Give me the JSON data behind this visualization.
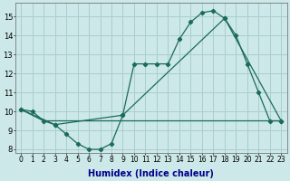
{
  "xlabel": "Humidex (Indice chaleur)",
  "bg_color": "#cce8e8",
  "grid_color": "#aacece",
  "line_color": "#1a6b5a",
  "xlim": [
    -0.5,
    23.5
  ],
  "ylim": [
    7.8,
    15.7
  ],
  "xticks": [
    0,
    1,
    2,
    3,
    4,
    5,
    6,
    7,
    8,
    9,
    10,
    11,
    12,
    13,
    14,
    15,
    16,
    17,
    18,
    19,
    20,
    21,
    22,
    23
  ],
  "yticks": [
    8,
    9,
    10,
    11,
    12,
    13,
    14,
    15
  ],
  "line1_x": [
    0,
    1,
    2,
    3,
    4,
    5,
    6,
    7,
    8,
    9,
    10,
    11,
    12,
    13,
    14,
    15,
    16,
    17,
    18,
    19,
    20,
    21,
    22,
    23
  ],
  "line1_y": [
    10.1,
    10.0,
    9.5,
    9.3,
    8.8,
    8.3,
    8.0,
    8.0,
    8.3,
    9.8,
    12.5,
    12.5,
    12.5,
    12.5,
    13.8,
    14.7,
    15.2,
    15.3,
    14.9,
    14.0,
    12.5,
    11.0,
    9.5,
    9.5
  ],
  "line2_x": [
    0,
    3,
    9,
    18,
    23
  ],
  "line2_y": [
    10.1,
    9.3,
    9.8,
    14.9,
    9.5
  ],
  "line3_x": [
    0,
    2,
    22,
    23
  ],
  "line3_y": [
    10.1,
    9.5,
    9.5,
    9.5
  ],
  "xlabel_color": "#00008b",
  "xlabel_fontsize": 7,
  "tick_fontsize": 5.5
}
